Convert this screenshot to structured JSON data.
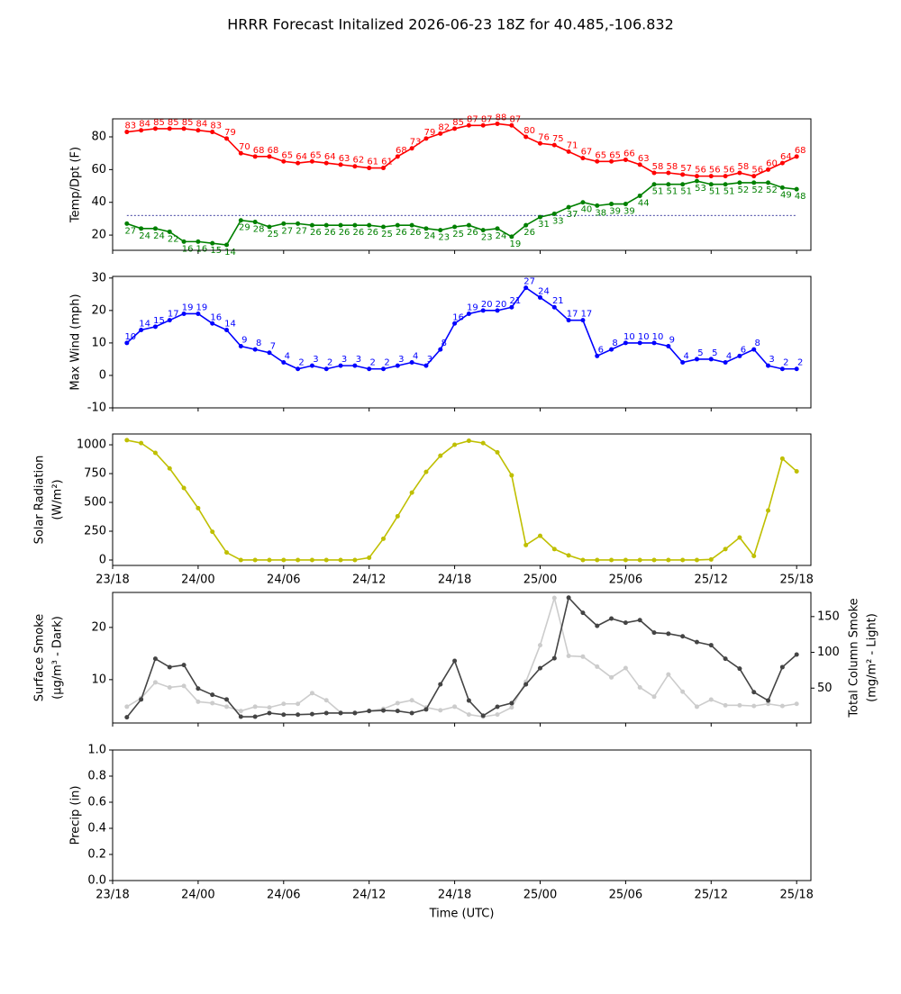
{
  "title": "HRRR Forecast Initalized 2026-06-23 18Z for 40.485,-106.832",
  "chart_data": [
    {
      "type": "line",
      "ylabel": [
        "Temp/Dpt (F)"
      ],
      "x": [
        1,
        2,
        3,
        4,
        5,
        6,
        7,
        8,
        9,
        10,
        11,
        12,
        13,
        14,
        15,
        16,
        17,
        18,
        19,
        20,
        21,
        22,
        23,
        24,
        25,
        26,
        27,
        28,
        29,
        30,
        31,
        32,
        33,
        34,
        35,
        36,
        37,
        38,
        39,
        40,
        41,
        42,
        43,
        44,
        45,
        46,
        47,
        48
      ],
      "xlim": [
        0,
        49
      ],
      "xticks": [
        0,
        6,
        12,
        18,
        24,
        30,
        36,
        42,
        48
      ],
      "ylim": [
        10.7,
        91
      ],
      "yticks": [
        20,
        40,
        60,
        80
      ],
      "reference_line": {
        "value": 32,
        "color": "#000080"
      },
      "series": [
        {
          "color": "#ff0000",
          "show_value_labels": true,
          "value_label_position": "above",
          "values": [
            83,
            84,
            85,
            85,
            85,
            84,
            83,
            79,
            70,
            68,
            68,
            65,
            64,
            65,
            64,
            63,
            62,
            61,
            61,
            68,
            73,
            79,
            82,
            85,
            87,
            87,
            88,
            87,
            80,
            76,
            75,
            71,
            67,
            65,
            65,
            66,
            63,
            58,
            58,
            57,
            56,
            56,
            56,
            58,
            56,
            60,
            64,
            68
          ]
        },
        {
          "color": "#008000",
          "show_value_labels": true,
          "value_label_position": "below",
          "values": [
            27,
            24,
            24,
            22,
            16,
            16,
            15,
            14,
            29,
            28,
            25,
            27,
            27,
            26,
            26,
            26,
            26,
            26,
            25,
            26,
            26,
            24,
            23,
            25,
            26,
            23,
            24,
            19,
            26,
            31,
            33,
            37,
            40,
            38,
            39,
            39,
            44,
            51,
            51,
            51,
            53,
            51,
            51,
            52,
            52,
            52,
            49,
            48
          ]
        }
      ]
    },
    {
      "type": "line",
      "ylabel": [
        "Max Wind (mph)"
      ],
      "x": [
        1,
        2,
        3,
        4,
        5,
        6,
        7,
        8,
        9,
        10,
        11,
        12,
        13,
        14,
        15,
        16,
        17,
        18,
        19,
        20,
        21,
        22,
        23,
        24,
        25,
        26,
        27,
        28,
        29,
        30,
        31,
        32,
        33,
        34,
        35,
        36,
        37,
        38,
        39,
        40,
        41,
        42,
        43,
        44,
        45,
        46,
        47,
        48
      ],
      "xlim": [
        0,
        49
      ],
      "xticks": [
        0,
        6,
        12,
        18,
        24,
        30,
        36,
        42,
        48
      ],
      "ylim": [
        -10,
        30.5
      ],
      "yticks": [
        -10,
        0,
        10,
        20,
        30
      ],
      "series": [
        {
          "color": "#0000ff",
          "show_value_labels": true,
          "value_label_position": "above",
          "values": [
            10,
            14,
            15,
            17,
            19,
            19,
            16,
            14,
            9,
            8,
            7,
            4,
            2,
            3,
            2,
            3,
            3,
            2,
            2,
            3,
            4,
            3,
            8,
            16,
            19,
            20,
            20,
            21,
            27,
            24,
            21,
            17,
            17,
            6,
            8,
            10,
            10,
            10,
            9,
            4,
            5,
            5,
            4,
            6,
            8,
            3,
            2,
            2
          ]
        }
      ]
    },
    {
      "type": "line",
      "ylabel": [
        "Solar Radiation",
        "(W/m²)"
      ],
      "x": [
        1,
        2,
        3,
        4,
        5,
        6,
        7,
        8,
        9,
        10,
        11,
        12,
        13,
        14,
        15,
        16,
        17,
        18,
        19,
        20,
        21,
        22,
        23,
        24,
        25,
        26,
        27,
        28,
        29,
        30,
        31,
        32,
        33,
        34,
        35,
        36,
        37,
        38,
        39,
        40,
        41,
        42,
        43,
        44,
        45,
        46,
        47,
        48
      ],
      "xlim": [
        0,
        49
      ],
      "xticks": [
        {
          "value": 0,
          "label": "23/18"
        },
        {
          "value": 6,
          "label": "24/00"
        },
        {
          "value": 12,
          "label": "24/06"
        },
        {
          "value": 18,
          "label": "24/12"
        },
        {
          "value": 24,
          "label": "24/18"
        },
        {
          "value": 30,
          "label": "25/00"
        },
        {
          "value": 36,
          "label": "25/06"
        },
        {
          "value": 42,
          "label": "25/12"
        },
        {
          "value": 48,
          "label": "25/18"
        }
      ],
      "ylim": [
        -47,
        1094
      ],
      "yticks": [
        0,
        250,
        500,
        750,
        1000
      ],
      "series": [
        {
          "color": "#bfbf00",
          "show_value_labels": false,
          "values": [
            1040,
            1015,
            930,
            795,
            625,
            450,
            245,
            65,
            0,
            0,
            0,
            0,
            0,
            0,
            0,
            0,
            0,
            20,
            185,
            380,
            585,
            765,
            905,
            1000,
            1035,
            1015,
            935,
            735,
            130,
            210,
            95,
            40,
            0,
            0,
            0,
            0,
            0,
            0,
            0,
            0,
            0,
            5,
            95,
            195,
            35,
            430,
            880,
            770
          ]
        }
      ]
    },
    {
      "type": "line",
      "ylabel": [
        "Surface Smoke",
        "(μg/m³ - Dark)"
      ],
      "y2label": [
        "Total Column Smoke",
        "(mg/m² - Light)"
      ],
      "x": [
        1,
        2,
        3,
        4,
        5,
        6,
        7,
        8,
        9,
        10,
        11,
        12,
        13,
        14,
        15,
        16,
        17,
        18,
        19,
        20,
        21,
        22,
        23,
        24,
        25,
        26,
        27,
        28,
        29,
        30,
        31,
        32,
        33,
        34,
        35,
        36,
        37,
        38,
        39,
        40,
        41,
        42,
        43,
        44,
        45,
        46,
        47,
        48
      ],
      "xlim": [
        0,
        49
      ],
      "xticks": [
        0,
        6,
        12,
        18,
        24,
        30,
        36,
        42,
        48
      ],
      "ylim": [
        1.7,
        26.7
      ],
      "yticks": [
        10,
        20
      ],
      "y2lim": [
        1.25,
        183.75
      ],
      "y2ticks": [
        50,
        100,
        150
      ],
      "series": [
        {
          "color": "#cccccc",
          "axis": "y2",
          "show_value_labels": false,
          "values": [
            24,
            36,
            58,
            51,
            53,
            31,
            29,
            24,
            18,
            24,
            23,
            28,
            28,
            43,
            33,
            16,
            16,
            18,
            21,
            29,
            33,
            23,
            19,
            24,
            13,
            10,
            13,
            23,
            59,
            110,
            176,
            95,
            94,
            80,
            65,
            78,
            51,
            38,
            69,
            45,
            24,
            34,
            26,
            26,
            25,
            28,
            25,
            28
          ]
        },
        {
          "color": "#444444",
          "show_value_labels": false,
          "values": [
            2.8,
            6.2,
            14.0,
            12.4,
            12.8,
            8.3,
            7.1,
            6.2,
            2.9,
            2.9,
            3.6,
            3.3,
            3.3,
            3.4,
            3.6,
            3.6,
            3.6,
            4.0,
            4.1,
            4.0,
            3.6,
            4.3,
            9.1,
            13.6,
            6.0,
            3.1,
            4.8,
            5.5,
            9.1,
            12.2,
            14.1,
            25.7,
            22.8,
            20.3,
            21.7,
            20.9,
            21.4,
            19.0,
            18.8,
            18.3,
            17.2,
            16.6,
            14.0,
            12.1,
            7.6,
            6.0,
            12.4,
            14.8
          ]
        }
      ]
    },
    {
      "type": "line",
      "ylabel": [
        "Precip (in)"
      ],
      "xlabel": "Time (UTC)",
      "xlim": [
        0,
        49
      ],
      "xticks": [
        {
          "value": 0,
          "label": "23/18"
        },
        {
          "value": 6,
          "label": "24/00"
        },
        {
          "value": 12,
          "label": "24/06"
        },
        {
          "value": 18,
          "label": "24/12"
        },
        {
          "value": 24,
          "label": "24/18"
        },
        {
          "value": 30,
          "label": "25/00"
        },
        {
          "value": 36,
          "label": "25/06"
        },
        {
          "value": 42,
          "label": "25/12"
        },
        {
          "value": 48,
          "label": "25/18"
        }
      ],
      "ylim": [
        0,
        1
      ],
      "yticks": [
        {
          "value": 0,
          "label": "0.0"
        },
        {
          "value": 0.2,
          "label": "0.2"
        },
        {
          "value": 0.4,
          "label": "0.4"
        },
        {
          "value": 0.6,
          "label": "0.6"
        },
        {
          "value": 0.8,
          "label": "0.8"
        },
        {
          "value": 1,
          "label": "1.0"
        }
      ]
    }
  ]
}
